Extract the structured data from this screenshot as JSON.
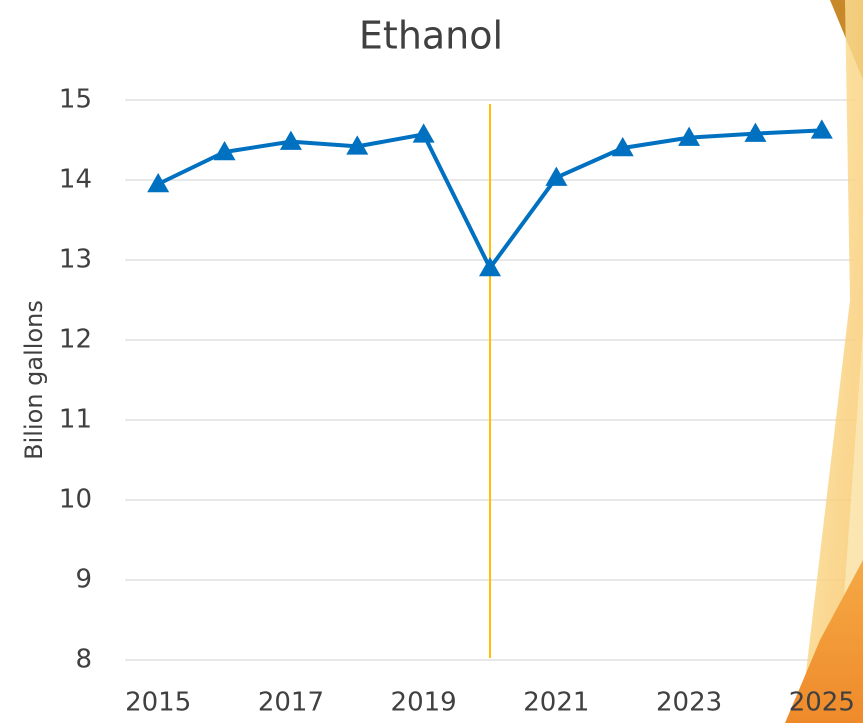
{
  "chart_data": {
    "type": "line",
    "title": "Ethanol",
    "y_label": "Bilion gallons",
    "x": [
      2015,
      2016,
      2017,
      2018,
      2019,
      2020,
      2021,
      2022,
      2023,
      2024,
      2025
    ],
    "series": [
      {
        "name": "Ethanol",
        "color": "#0070c0",
        "values": [
          13.95,
          14.35,
          14.48,
          14.42,
          14.57,
          12.9,
          14.03,
          14.4,
          14.53,
          14.58,
          14.62
        ]
      }
    ],
    "xlim": [
      2014.5,
      2025.5
    ],
    "xticks": [
      2015,
      2017,
      2019,
      2021,
      2023,
      2025
    ],
    "ylim": [
      8,
      15
    ],
    "yticks": [
      8,
      9,
      10,
      11,
      12,
      13,
      14,
      15
    ],
    "grid": true,
    "marker": "triangle",
    "vline": {
      "x": 2020,
      "color": "#ffc000"
    }
  }
}
